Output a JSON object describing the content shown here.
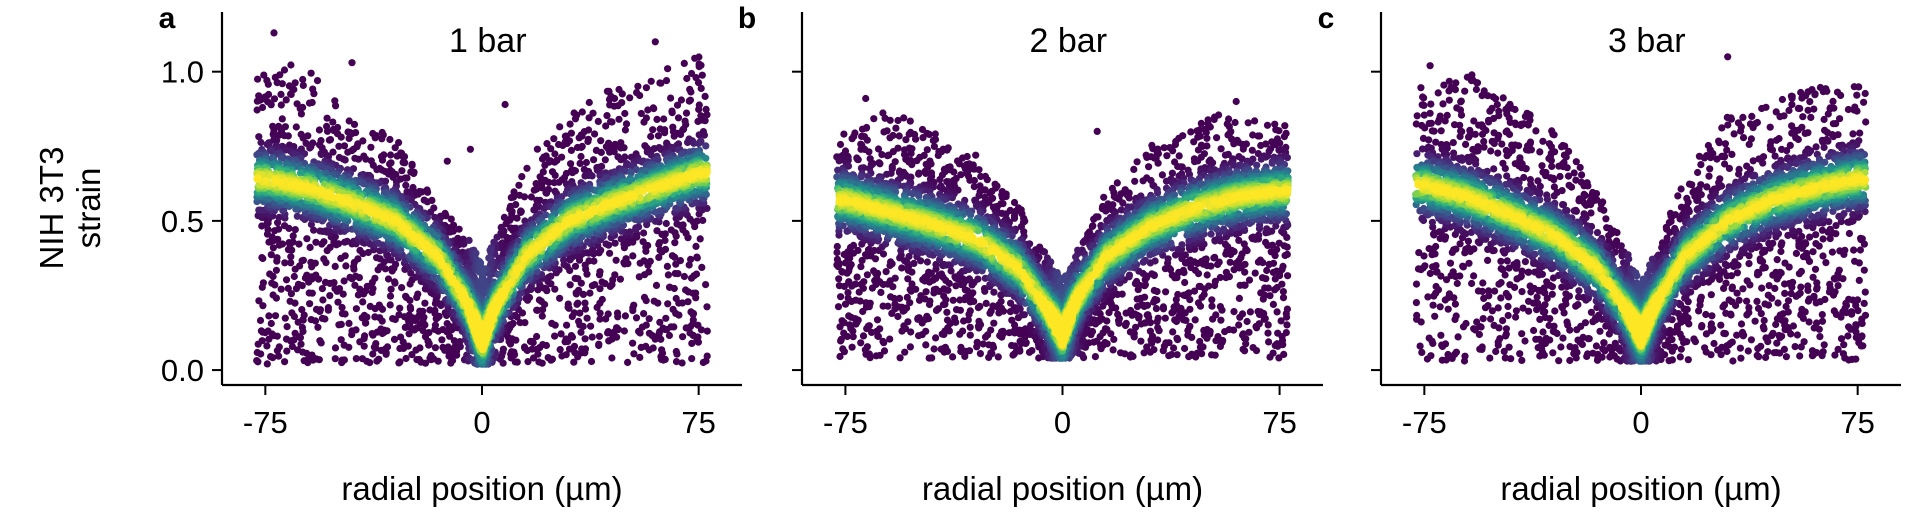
{
  "figure": {
    "ylabel_line1": "NIH 3T3",
    "ylabel_line2": "strain"
  },
  "chart_data": [
    {
      "type": "scatter",
      "panel_label": "a",
      "title": "1 bar",
      "xlabel": "radial position (µm)",
      "ylabel": "NIH 3T3 strain",
      "xlim": [
        -90,
        90
      ],
      "ylim": [
        -0.05,
        1.2
      ],
      "xticks": [
        -75,
        0,
        75
      ],
      "xtick_labels": [
        "-75",
        "0",
        "75"
      ],
      "yticks": [
        0.0,
        0.5,
        1.0
      ],
      "ytick_labels": [
        "0.0",
        "0.5",
        "1.0"
      ],
      "colormap": "viridis",
      "density_coloring": true,
      "grid": false,
      "legend": "none",
      "profile": {
        "x": [
          -75,
          -60,
          -45,
          -30,
          -15,
          -5,
          0,
          5,
          15,
          30,
          45,
          60,
          75
        ],
        "y_center": [
          0.64,
          0.61,
          0.56,
          0.5,
          0.38,
          0.22,
          0.1,
          0.22,
          0.38,
          0.5,
          0.56,
          0.61,
          0.66
        ],
        "y_min": [
          0.02,
          0.02,
          0.02,
          0.02,
          0.02,
          0.02,
          0.02,
          0.02,
          0.02,
          0.02,
          0.02,
          0.02,
          0.02
        ],
        "y_max": [
          1.0,
          1.05,
          0.85,
          0.78,
          0.55,
          0.45,
          0.35,
          0.45,
          0.7,
          0.85,
          0.95,
          1.0,
          1.05
        ]
      },
      "outliers": [
        [
          -72,
          1.13
        ],
        [
          -45,
          1.03
        ],
        [
          8,
          0.89
        ],
        [
          60,
          1.1
        ],
        [
          -12,
          0.7
        ],
        [
          -4,
          0.74
        ]
      ]
    },
    {
      "type": "scatter",
      "panel_label": "b",
      "title": "2 bar",
      "xlabel": "radial position (µm)",
      "xlim": [
        -90,
        90
      ],
      "ylim": [
        -0.05,
        1.2
      ],
      "xticks": [
        -75,
        0,
        75
      ],
      "xtick_labels": [
        "-75",
        "0",
        "75"
      ],
      "yticks": [
        0.0,
        0.5,
        1.0
      ],
      "colormap": "viridis",
      "density_coloring": true,
      "grid": false,
      "legend": "none",
      "profile": {
        "x": [
          -75,
          -60,
          -45,
          -30,
          -15,
          -5,
          0,
          5,
          15,
          30,
          45,
          60,
          75
        ],
        "y_center": [
          0.57,
          0.53,
          0.49,
          0.44,
          0.34,
          0.2,
          0.12,
          0.24,
          0.38,
          0.48,
          0.54,
          0.58,
          0.6
        ],
        "y_min": [
          0.04,
          0.04,
          0.04,
          0.04,
          0.04,
          0.04,
          0.04,
          0.04,
          0.04,
          0.04,
          0.04,
          0.04,
          0.04
        ],
        "y_max": [
          0.8,
          0.88,
          0.8,
          0.7,
          0.55,
          0.38,
          0.3,
          0.4,
          0.6,
          0.75,
          0.82,
          0.88,
          0.82
        ]
      },
      "outliers": [
        [
          -68,
          0.91
        ],
        [
          12,
          0.8
        ],
        [
          60,
          0.9
        ],
        [
          -30,
          0.72
        ]
      ]
    },
    {
      "type": "scatter",
      "panel_label": "c",
      "title": "3 bar",
      "xlabel": "radial position (µm)",
      "xlim": [
        -90,
        90
      ],
      "ylim": [
        -0.05,
        1.2
      ],
      "xticks": [
        -75,
        0,
        75
      ],
      "xtick_labels": [
        "-75",
        "0",
        "75"
      ],
      "yticks": [
        0.0,
        0.5,
        1.0
      ],
      "colormap": "viridis",
      "density_coloring": true,
      "grid": false,
      "legend": "none",
      "profile": {
        "x": [
          -75,
          -60,
          -45,
          -30,
          -15,
          -5,
          0,
          5,
          15,
          30,
          45,
          60,
          75
        ],
        "y_center": [
          0.62,
          0.58,
          0.52,
          0.45,
          0.34,
          0.2,
          0.12,
          0.22,
          0.38,
          0.5,
          0.57,
          0.61,
          0.64
        ],
        "y_min": [
          0.03,
          0.03,
          0.03,
          0.03,
          0.03,
          0.03,
          0.03,
          0.03,
          0.03,
          0.03,
          0.03,
          0.03,
          0.03
        ],
        "y_max": [
          0.95,
          1.0,
          0.9,
          0.8,
          0.6,
          0.4,
          0.3,
          0.4,
          0.65,
          0.85,
          0.9,
          0.95,
          0.95
        ]
      },
      "outliers": [
        [
          -73,
          1.02
        ],
        [
          30,
          1.05
        ],
        [
          -55,
          0.92
        ],
        [
          57,
          0.92
        ],
        [
          -40,
          0.85
        ]
      ]
    }
  ]
}
